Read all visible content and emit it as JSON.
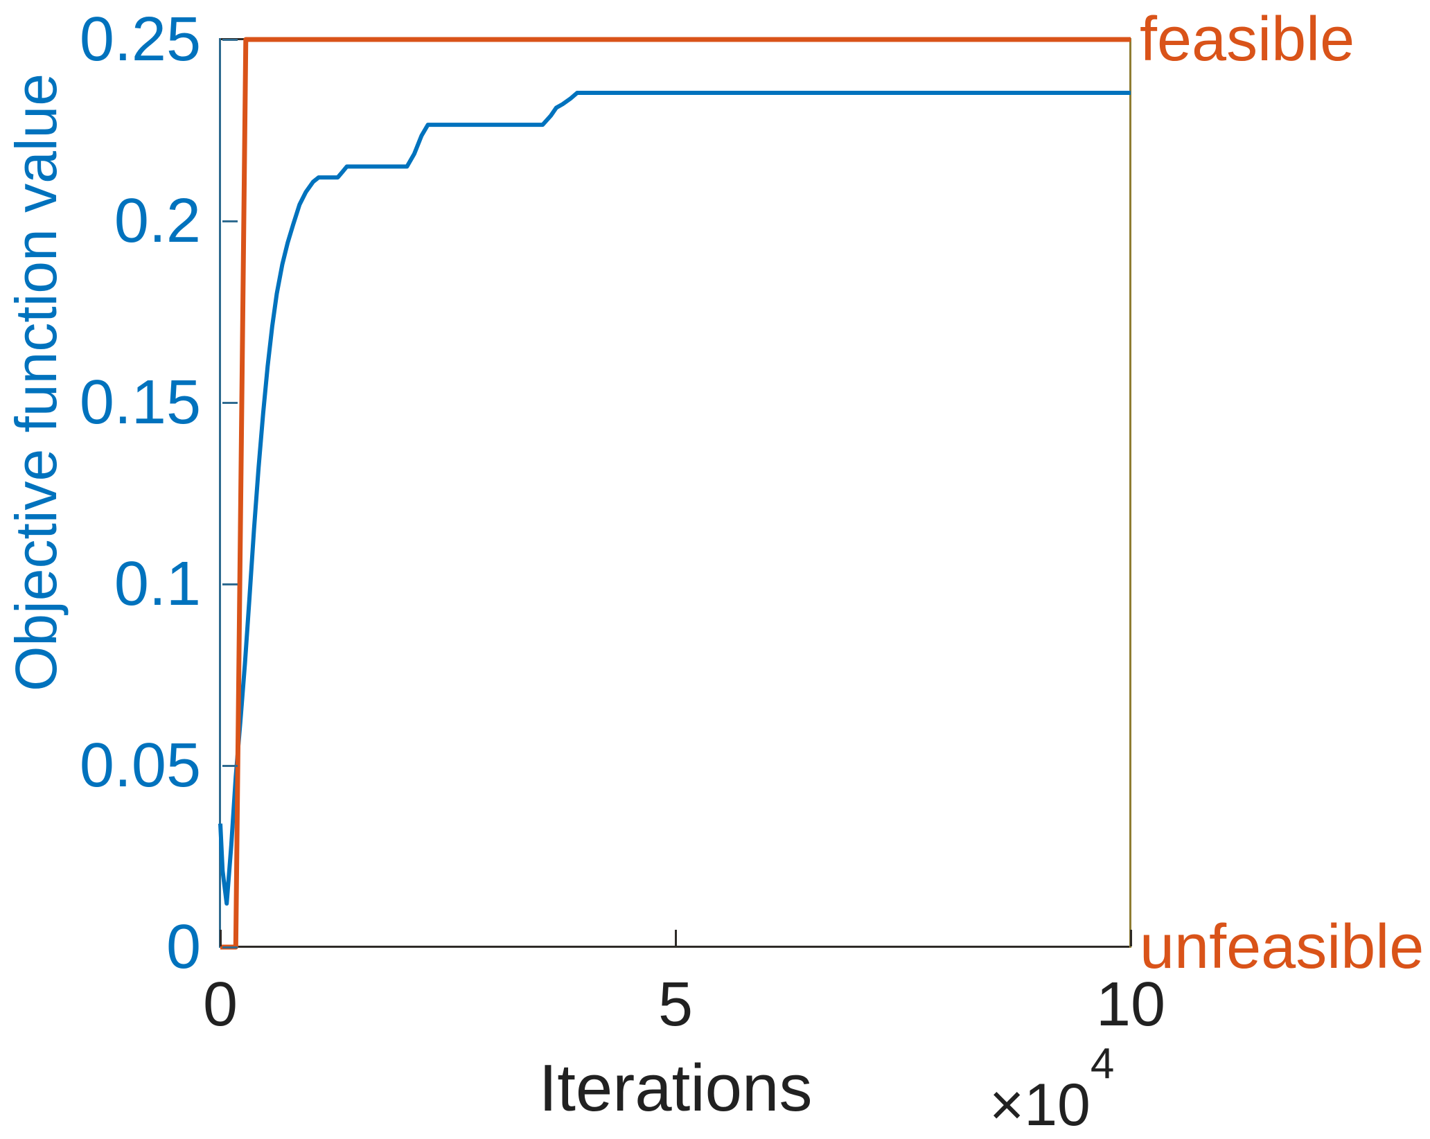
{
  "figure": {
    "xlabel": "Iterations",
    "ylabel": "Objective function value",
    "offset": {
      "multiplier": "×10",
      "exponent": "4"
    }
  },
  "colors": {
    "objective_blue": "#0072BD",
    "feasibility_orange": "#D95319",
    "axis_dark": "#212121",
    "left_spine_blue": "#2d6a8f",
    "right_spine_olive": "#8f7d33"
  },
  "chart_data": {
    "type": "line",
    "title": "",
    "xlabel": "Iterations",
    "ylabel": "Objective function value",
    "x_scale_note": "×10^4",
    "xlim": [
      0,
      100000
    ],
    "left_ylim": [
      0,
      0.25
    ],
    "right_ylim": [
      0,
      1
    ],
    "grid": false,
    "legend": "none",
    "x_ticks": [
      {
        "value": 0,
        "label": "0"
      },
      {
        "value": 50000,
        "label": "5"
      },
      {
        "value": 100000,
        "label": "10"
      }
    ],
    "y_ticks": [
      {
        "value": 0,
        "label": "0"
      },
      {
        "value": 0.05,
        "label": "0.05"
      },
      {
        "value": 0.1,
        "label": "0.1"
      },
      {
        "value": 0.15,
        "label": "0.15"
      },
      {
        "value": 0.2,
        "label": "0.2"
      },
      {
        "value": 0.25,
        "label": "0.25"
      }
    ],
    "right_ticks": [
      {
        "value": 1,
        "label": "feasible"
      },
      {
        "value": 0,
        "label": "unfeasible"
      }
    ],
    "annotations": {
      "feasibility_boundary_iterations": 2400,
      "final_objective_value": 0.2353
    },
    "series": [
      {
        "name": "objective-function-value",
        "axis": "left",
        "color": "#0072BD",
        "line_width": 6,
        "points": [
          [
            0,
            0.034
          ],
          [
            250,
            0.021
          ],
          [
            700,
            0.012
          ],
          [
            1200,
            0.028
          ],
          [
            1700,
            0.047
          ],
          [
            2200,
            0.062
          ],
          [
            2700,
            0.078
          ],
          [
            3200,
            0.096
          ],
          [
            3700,
            0.115
          ],
          [
            4200,
            0.132
          ],
          [
            4700,
            0.147
          ],
          [
            5200,
            0.16
          ],
          [
            5700,
            0.171
          ],
          [
            6200,
            0.18
          ],
          [
            6800,
            0.188
          ],
          [
            7400,
            0.194
          ],
          [
            8000,
            0.199
          ],
          [
            8700,
            0.2045
          ],
          [
            9400,
            0.208
          ],
          [
            10200,
            0.2108
          ],
          [
            10800,
            0.212
          ],
          [
            12900,
            0.212
          ],
          [
            13400,
            0.2135
          ],
          [
            13900,
            0.215
          ],
          [
            20500,
            0.215
          ],
          [
            21300,
            0.2185
          ],
          [
            22100,
            0.2235
          ],
          [
            22800,
            0.2265
          ],
          [
            35400,
            0.2265
          ],
          [
            36300,
            0.229
          ],
          [
            36900,
            0.2312
          ],
          [
            37600,
            0.2322
          ],
          [
            38500,
            0.2338
          ],
          [
            39200,
            0.2353
          ],
          [
            100000,
            0.2353
          ]
        ]
      },
      {
        "name": "feasibility-step",
        "axis": "right",
        "color": "#D95319",
        "line_width": 7,
        "points": [
          [
            0,
            0
          ],
          [
            1700,
            0
          ],
          [
            2800,
            1
          ],
          [
            100000,
            1
          ]
        ]
      }
    ]
  }
}
